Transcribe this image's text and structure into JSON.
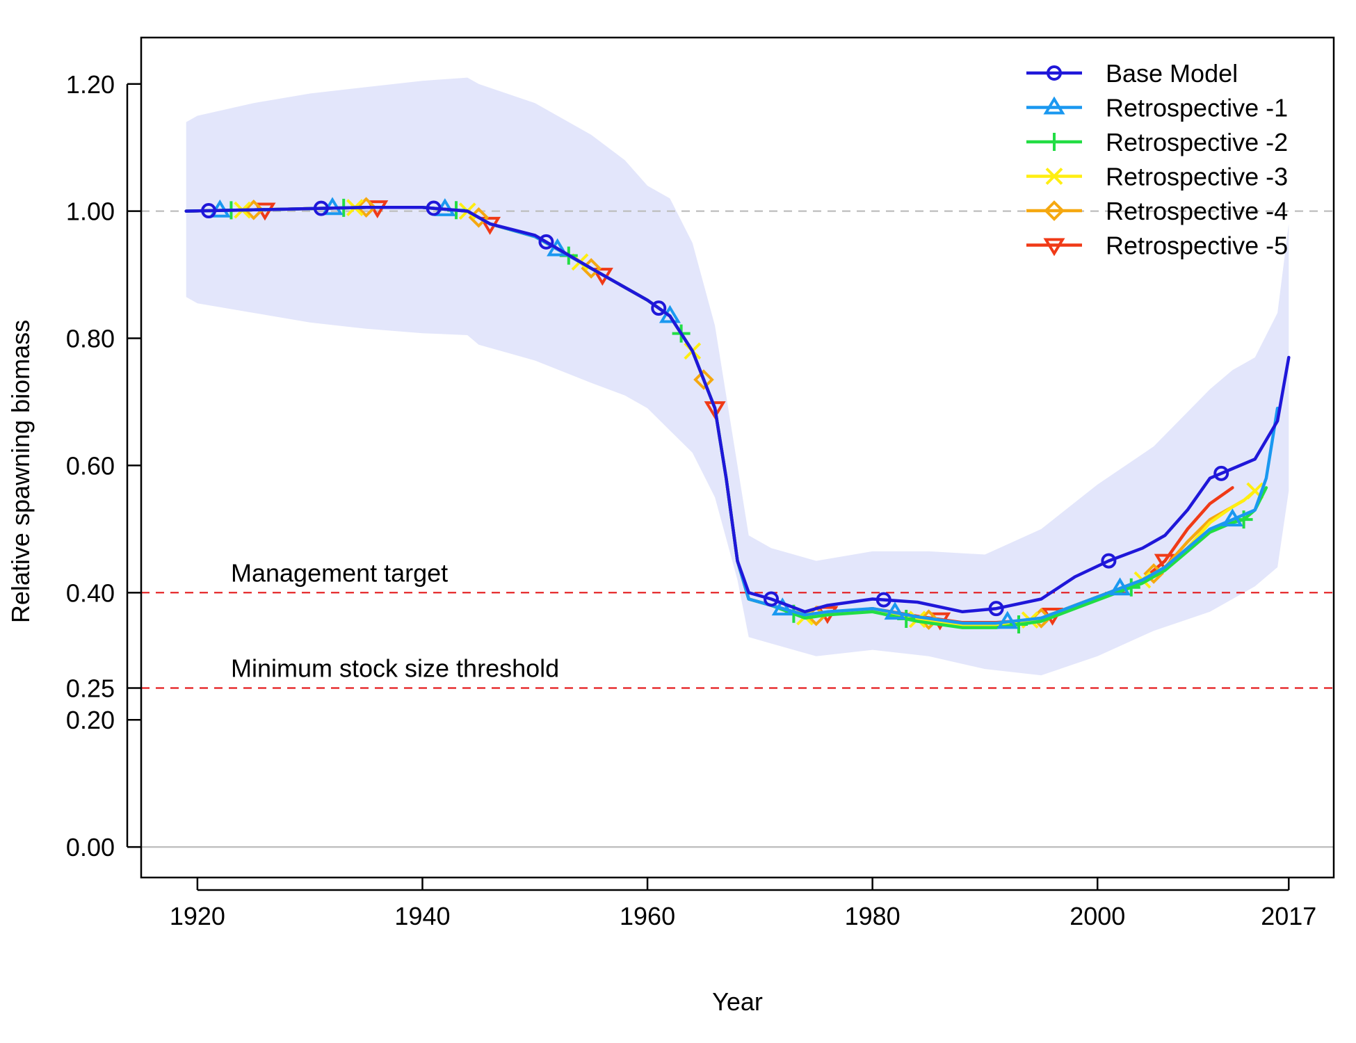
{
  "chart_data": {
    "type": "line",
    "title": "",
    "xlabel": "Year",
    "ylabel": "Relative spawning biomass",
    "xlim": [
      1915,
      2021
    ],
    "ylim": [
      -0.048,
      1.273
    ],
    "x_ticks": [
      1920,
      1940,
      1960,
      1980,
      2000,
      2017
    ],
    "x_tick_labels": [
      "1920",
      "1940",
      "1960",
      "1980",
      "2000",
      "2017"
    ],
    "y_ticks": [
      0,
      0.2,
      0.25,
      0.4,
      0.6,
      0.8,
      1.0,
      1.2
    ],
    "y_tick_labels": [
      "0.00",
      "0.20",
      "0.25",
      "0.40",
      "0.60",
      "0.80",
      "1.00",
      "1.20"
    ],
    "grid": false,
    "legend_position": "top-right",
    "reference_lines": [
      {
        "value": 1.0,
        "style": "dashed",
        "color": "#bdbdbd",
        "label": ""
      },
      {
        "value": 0.4,
        "style": "dashed",
        "color": "#e41a1c",
        "label": "Management target"
      },
      {
        "value": 0.25,
        "style": "dashed",
        "color": "#e41a1c",
        "label": "Minimum stock size threshold"
      },
      {
        "value": 0.0,
        "style": "solid",
        "color": "#bdbdbd",
        "label": ""
      }
    ],
    "confidence_band": {
      "color": "#e3e6fb",
      "x": [
        1919,
        1920,
        1925,
        1930,
        1935,
        1940,
        1944,
        1945,
        1950,
        1955,
        1958,
        1960,
        1962,
        1964,
        1966,
        1968,
        1969,
        1971,
        1975,
        1980,
        1985,
        1990,
        1995,
        2000,
        2005,
        2010,
        2012,
        2014,
        2016,
        2017
      ],
      "upper": [
        1.14,
        1.15,
        1.17,
        1.185,
        1.195,
        1.205,
        1.21,
        1.2,
        1.17,
        1.12,
        1.08,
        1.04,
        1.02,
        0.95,
        0.82,
        0.6,
        0.49,
        0.47,
        0.45,
        0.465,
        0.465,
        0.46,
        0.5,
        0.57,
        0.63,
        0.72,
        0.75,
        0.77,
        0.84,
        0.98
      ],
      "lower": [
        0.865,
        0.855,
        0.84,
        0.825,
        0.815,
        0.808,
        0.805,
        0.79,
        0.765,
        0.73,
        0.71,
        0.69,
        0.655,
        0.62,
        0.55,
        0.42,
        0.33,
        0.32,
        0.3,
        0.31,
        0.3,
        0.28,
        0.27,
        0.3,
        0.34,
        0.37,
        0.39,
        0.41,
        0.44,
        0.56
      ]
    },
    "series": [
      {
        "name": "Base Model",
        "color": "#1f17d9",
        "marker": "circle",
        "x": [
          1919,
          1925,
          1930,
          1935,
          1940,
          1944,
          1946,
          1950,
          1955,
          1960,
          1962,
          1964,
          1966,
          1967,
          1968,
          1969,
          1971,
          1974,
          1976,
          1980,
          1984,
          1988,
          1991,
          1995,
          1998,
          2001,
          2004,
          2006,
          2008,
          2010,
          2012,
          2014,
          2016,
          2017
        ],
        "y": [
          1.0,
          1.002,
          1.004,
          1.006,
          1.006,
          1.0,
          0.98,
          0.962,
          0.91,
          0.86,
          0.835,
          0.78,
          0.69,
          0.58,
          0.45,
          0.4,
          0.39,
          0.37,
          0.38,
          0.39,
          0.385,
          0.37,
          0.375,
          0.39,
          0.425,
          0.45,
          0.47,
          0.49,
          0.53,
          0.58,
          0.595,
          0.61,
          0.67,
          0.77
        ],
        "marker_x": [
          1921,
          1931,
          1941,
          1951,
          1961,
          1971,
          1981,
          1991,
          2001,
          2011
        ]
      },
      {
        "name": "Retrospective -1",
        "color": "#1a98f0",
        "marker": "triangle-up",
        "x": [
          1919,
          1925,
          1930,
          1935,
          1940,
          1944,
          1946,
          1950,
          1955,
          1960,
          1962,
          1964,
          1966,
          1967,
          1968,
          1969,
          1971,
          1974,
          1976,
          1980,
          1984,
          1988,
          1991,
          1995,
          1998,
          2001,
          2004,
          2006,
          2008,
          2010,
          2012,
          2014,
          2015,
          2016
        ],
        "y": [
          1.0,
          1.002,
          1.004,
          1.006,
          1.006,
          1.0,
          0.98,
          0.96,
          0.91,
          0.86,
          0.835,
          0.78,
          0.69,
          0.58,
          0.45,
          0.39,
          0.38,
          0.365,
          0.37,
          0.375,
          0.362,
          0.352,
          0.352,
          0.36,
          0.38,
          0.4,
          0.42,
          0.44,
          0.47,
          0.5,
          0.515,
          0.53,
          0.58,
          0.69
        ],
        "marker_x": [
          1922,
          1932,
          1942,
          1952,
          1962,
          1972,
          1982,
          1992,
          2002,
          2012
        ]
      },
      {
        "name": "Retrospective -2",
        "color": "#22dd44",
        "marker": "plus",
        "x": [
          1919,
          1925,
          1930,
          1935,
          1940,
          1944,
          1946,
          1950,
          1955,
          1960,
          1962,
          1964,
          1966,
          1967,
          1968,
          1969,
          1971,
          1974,
          1976,
          1980,
          1984,
          1988,
          1991,
          1995,
          1998,
          2001,
          2004,
          2006,
          2008,
          2010,
          2012,
          2013,
          2014,
          2015
        ],
        "y": [
          1.0,
          1.002,
          1.004,
          1.006,
          1.006,
          1.0,
          0.98,
          0.96,
          0.91,
          0.86,
          0.835,
          0.78,
          0.69,
          0.58,
          0.45,
          0.39,
          0.38,
          0.36,
          0.365,
          0.37,
          0.355,
          0.345,
          0.345,
          0.355,
          0.375,
          0.395,
          0.415,
          0.435,
          0.465,
          0.495,
          0.51,
          0.515,
          0.53,
          0.565
        ],
        "marker_x": [
          1923,
          1933,
          1943,
          1953,
          1963,
          1973,
          1983,
          1993,
          2003,
          2013
        ]
      },
      {
        "name": "Retrospective -3",
        "color": "#ffee11",
        "marker": "x",
        "x": [
          1919,
          1925,
          1930,
          1935,
          1940,
          1944,
          1946,
          1950,
          1955,
          1960,
          1962,
          1964,
          1966,
          1967,
          1968,
          1969,
          1971,
          1974,
          1976,
          1980,
          1984,
          1988,
          1991,
          1995,
          1998,
          2001,
          2004,
          2006,
          2008,
          2010,
          2012,
          2013,
          2014
        ],
        "y": [
          1.0,
          1.002,
          1.004,
          1.006,
          1.006,
          1.0,
          0.98,
          0.96,
          0.91,
          0.86,
          0.835,
          0.78,
          0.69,
          0.58,
          0.45,
          0.39,
          0.38,
          0.362,
          0.365,
          0.372,
          0.358,
          0.348,
          0.348,
          0.36,
          0.38,
          0.4,
          0.42,
          0.44,
          0.47,
          0.51,
          0.535,
          0.545,
          0.56
        ],
        "marker_x": [
          1924,
          1934,
          1944,
          1954,
          1964,
          1974,
          1984,
          1994,
          2004,
          2014
        ]
      },
      {
        "name": "Retrospective -4",
        "color": "#f5a810",
        "marker": "diamond",
        "x": [
          1919,
          1925,
          1930,
          1935,
          1940,
          1944,
          1946,
          1950,
          1955,
          1960,
          1962,
          1964,
          1966,
          1967,
          1968,
          1969,
          1971,
          1974,
          1976,
          1980,
          1984,
          1988,
          1991,
          1995,
          1998,
          2001,
          2004,
          2006,
          2008,
          2010,
          2012,
          2013
        ],
        "y": [
          1.0,
          1.002,
          1.004,
          1.006,
          1.006,
          1.0,
          0.98,
          0.96,
          0.91,
          0.86,
          0.835,
          0.78,
          0.69,
          0.58,
          0.45,
          0.39,
          0.38,
          0.362,
          0.365,
          0.372,
          0.36,
          0.35,
          0.35,
          0.36,
          0.38,
          0.4,
          0.42,
          0.44,
          0.48,
          0.515,
          0.535,
          0.545
        ],
        "marker_x": [
          1925,
          1935,
          1945,
          1955,
          1965,
          1975,
          1985,
          1995,
          2005
        ]
      },
      {
        "name": "Retrospective -5",
        "color": "#f03a17",
        "marker": "triangle-down",
        "x": [
          1919,
          1925,
          1930,
          1935,
          1940,
          1944,
          1946,
          1950,
          1955,
          1960,
          1962,
          1964,
          1966,
          1967,
          1968,
          1969,
          1971,
          1974,
          1976,
          1980,
          1984,
          1988,
          1991,
          1995,
          1998,
          2001,
          2004,
          2006,
          2008,
          2010,
          2012
        ],
        "y": [
          1.0,
          1.002,
          1.004,
          1.006,
          1.006,
          1.0,
          0.98,
          0.96,
          0.91,
          0.86,
          0.835,
          0.78,
          0.69,
          0.58,
          0.45,
          0.39,
          0.38,
          0.365,
          0.368,
          0.375,
          0.363,
          0.353,
          0.353,
          0.358,
          0.38,
          0.4,
          0.42,
          0.45,
          0.5,
          0.54,
          0.565
        ],
        "marker_x": [
          1926,
          1936,
          1946,
          1956,
          1966,
          1976,
          1986,
          1996,
          2006
        ]
      }
    ]
  }
}
